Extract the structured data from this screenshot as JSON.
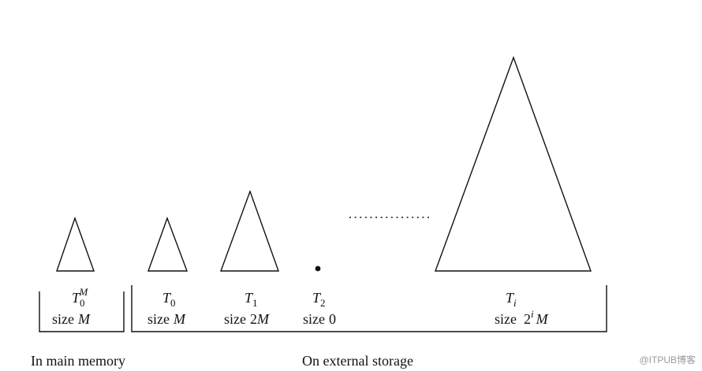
{
  "trees": [
    {
      "id": "t0m",
      "name_base": "T",
      "name_sub": "0",
      "name_sup": "M",
      "size_prefix": "size",
      "size_value": "M"
    },
    {
      "id": "t0",
      "name_base": "T",
      "name_sub": "0",
      "size_prefix": "size",
      "size_value": "M"
    },
    {
      "id": "t1",
      "name_base": "T",
      "name_sub": "1",
      "size_prefix": "size",
      "size_coef": "2",
      "size_value": "M"
    },
    {
      "id": "t2",
      "name_base": "T",
      "name_sub": "2",
      "size_prefix": "size",
      "size_value": "0"
    },
    {
      "id": "ti",
      "name_base": "T",
      "name_sub": "i",
      "size_prefix": "size",
      "size_coef": "2",
      "size_exp": "i",
      "size_value": "M"
    }
  ],
  "captions": {
    "main_memory": "In main memory",
    "external_storage": "On external storage"
  },
  "watermark": "@ITPUB博客"
}
